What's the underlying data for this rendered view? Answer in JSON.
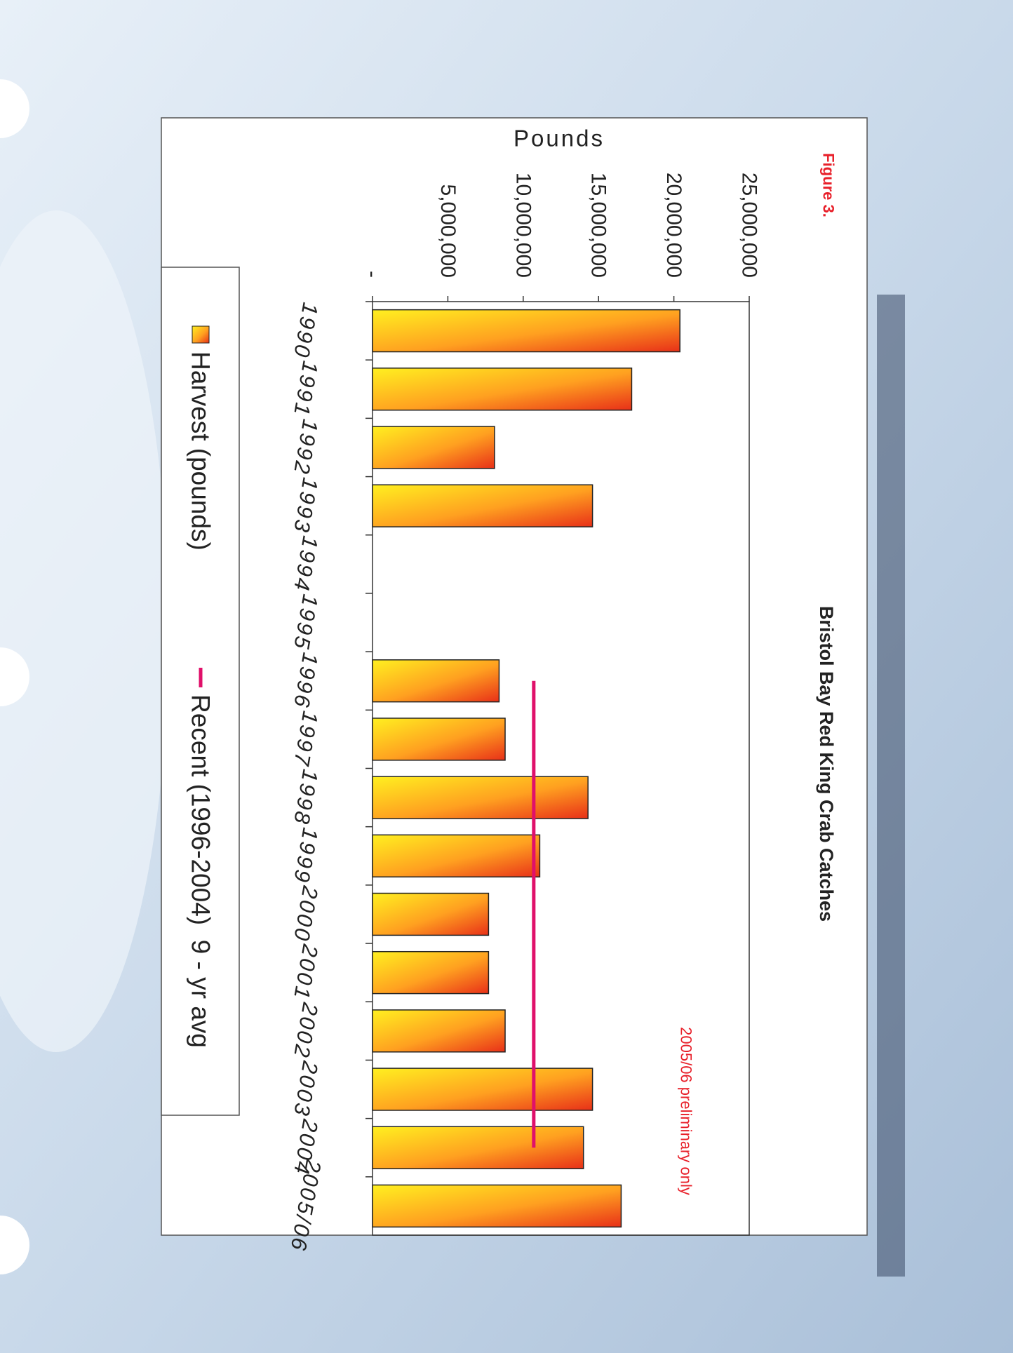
{
  "chart_data": {
    "type": "bar",
    "title": "Bristol Bay Red King Crab Catches",
    "figure_label": "Figure 3.",
    "annotation": "2005/06 preliminary only",
    "y_label": "Pounds",
    "categories": [
      "1990",
      "1991",
      "1992",
      "1993",
      "1994",
      "1995",
      "1996",
      "1997",
      "1998",
      "1999",
      "2000",
      "2001",
      "2002",
      "2003",
      "2004",
      "2005/06"
    ],
    "series": [
      {
        "name": "Harvest (pounds)",
        "type": "bar",
        "color": "#f06020",
        "values": [
          20400000,
          17200000,
          8100000,
          14600000,
          null,
          null,
          8400000,
          8800000,
          14300000,
          11100000,
          7700000,
          7700000,
          8800000,
          14600000,
          14000000,
          16500000
        ]
      },
      {
        "name": "Recent (1996-2004)  9 - yr avg",
        "type": "line",
        "color": "#e0106a",
        "values": [
          null,
          null,
          null,
          null,
          null,
          null,
          10700000,
          10700000,
          10700000,
          10700000,
          10700000,
          10700000,
          10700000,
          10700000,
          10700000,
          null
        ]
      }
    ],
    "ylim": [
      0,
      25000000
    ],
    "yticks": [
      {
        "value": 0,
        "label": "-"
      },
      {
        "value": 5000000,
        "label": "5,000,000"
      },
      {
        "value": 10000000,
        "label": "10,000,000"
      },
      {
        "value": 15000000,
        "label": "15,000,000"
      },
      {
        "value": 20000000,
        "label": "20,000,000"
      },
      {
        "value": 25000000,
        "label": "25,000,000"
      }
    ],
    "grid": false
  }
}
